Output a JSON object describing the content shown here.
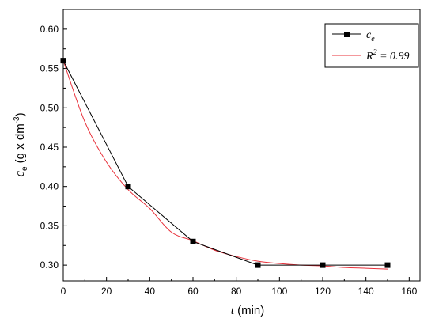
{
  "chart_data": {
    "type": "line",
    "title": "",
    "xlabel": {
      "var": "t",
      "unit": " (min)"
    },
    "ylabel": {
      "var": "c",
      "sub": "e",
      "unit": " (g x dm",
      "sup": "-3",
      "close": ")"
    },
    "xlim": [
      0,
      165
    ],
    "ylim": [
      0.28,
      0.625
    ],
    "x_ticks": [
      0,
      20,
      40,
      60,
      80,
      100,
      120,
      140,
      160
    ],
    "y_ticks": [
      0.3,
      0.35,
      0.4,
      0.45,
      0.5,
      0.55,
      0.6
    ],
    "y_tick_labels": [
      "0.30",
      "0.35",
      "0.40",
      "0.45",
      "0.50",
      "0.55",
      "0.60"
    ],
    "grid": false,
    "legend_position": "top-right",
    "series": [
      {
        "name": "c",
        "name_sub": "e",
        "kind": "line-marker",
        "marker": "square",
        "color": "#000000",
        "x": [
          0,
          30,
          60,
          90,
          120,
          150
        ],
        "y": [
          0.56,
          0.4,
          0.33,
          0.3,
          0.3,
          0.3
        ]
      },
      {
        "name": "R",
        "name_sup": "2",
        "name_rest": " = 0.99",
        "kind": "fit",
        "color": "#e8303a",
        "x": [
          0,
          10,
          20,
          30,
          40,
          50,
          60,
          70,
          80,
          90,
          100,
          110,
          120,
          130,
          140,
          150
        ],
        "y": [
          0.56,
          0.482,
          0.431,
          0.396,
          0.372,
          0.342,
          0.331,
          0.319,
          0.311,
          0.305,
          0.302,
          0.3,
          0.299,
          0.297,
          0.296,
          0.295
        ]
      }
    ]
  }
}
